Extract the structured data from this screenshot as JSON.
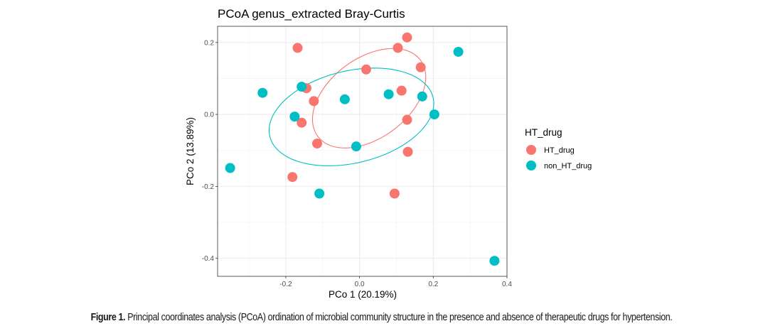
{
  "chart_data": {
    "type": "scatter",
    "title": "PCoA genus_extracted Bray-Curtis",
    "xlabel": "PCo 1 (20.19%)",
    "ylabel": "PCo 2 (13.89%)",
    "xlim": [
      -0.385,
      0.4
    ],
    "ylim": [
      -0.45,
      0.245
    ],
    "x_ticks": [
      -0.2,
      0.0,
      0.2,
      0.4
    ],
    "x_tick_labels": [
      "-0.2",
      "0.0",
      "0.2",
      "0.4"
    ],
    "y_ticks": [
      0.2,
      0.0,
      -0.2,
      -0.4
    ],
    "y_tick_labels": [
      "0.2",
      "0.0",
      "-0.2",
      "-0.4"
    ],
    "grid": true,
    "legend": {
      "title": "HT_drug",
      "placement": "right",
      "entries": [
        "HT_drug",
        "non_HT_drug"
      ]
    },
    "series": [
      {
        "name": "HT_drug",
        "color": "#F8766D",
        "points": [
          [
            -0.168,
            0.185
          ],
          [
            0.129,
            0.214
          ],
          [
            0.104,
            0.185
          ],
          [
            0.018,
            0.125
          ],
          [
            0.166,
            0.131
          ],
          [
            -0.144,
            0.073
          ],
          [
            0.114,
            0.066
          ],
          [
            -0.124,
            0.037
          ],
          [
            -0.157,
            -0.023
          ],
          [
            0.129,
            -0.015
          ],
          [
            -0.115,
            -0.081
          ],
          [
            0.131,
            -0.104
          ],
          [
            -0.182,
            -0.174
          ],
          [
            0.095,
            -0.22
          ]
        ],
        "ellipse": {
          "center": [
            0.026,
            0.045
          ],
          "semi_major": 0.175,
          "semi_minor": 0.11,
          "angle_deg": 38
        }
      },
      {
        "name": "non_HT_drug",
        "color": "#00BFC4",
        "points": [
          [
            0.268,
            0.174
          ],
          [
            -0.263,
            0.06
          ],
          [
            -0.157,
            0.077
          ],
          [
            -0.04,
            0.042
          ],
          [
            0.079,
            0.056
          ],
          [
            0.17,
            0.05
          ],
          [
            -0.176,
            -0.006
          ],
          [
            0.203,
            0.0
          ],
          [
            -0.009,
            -0.089
          ],
          [
            -0.351,
            -0.149
          ],
          [
            -0.109,
            -0.22
          ],
          [
            0.366,
            -0.407
          ]
        ],
        "ellipse": {
          "center": [
            -0.022,
            -0.007
          ],
          "semi_major": 0.228,
          "semi_minor": 0.128,
          "angle_deg": 14
        }
      }
    ]
  },
  "caption": {
    "label": "Figure 1.",
    "text": " Principal coordinates analysis (PCoA) ordination of microbial community structure in the presence and absence of therapeutic drugs for hypertension."
  }
}
